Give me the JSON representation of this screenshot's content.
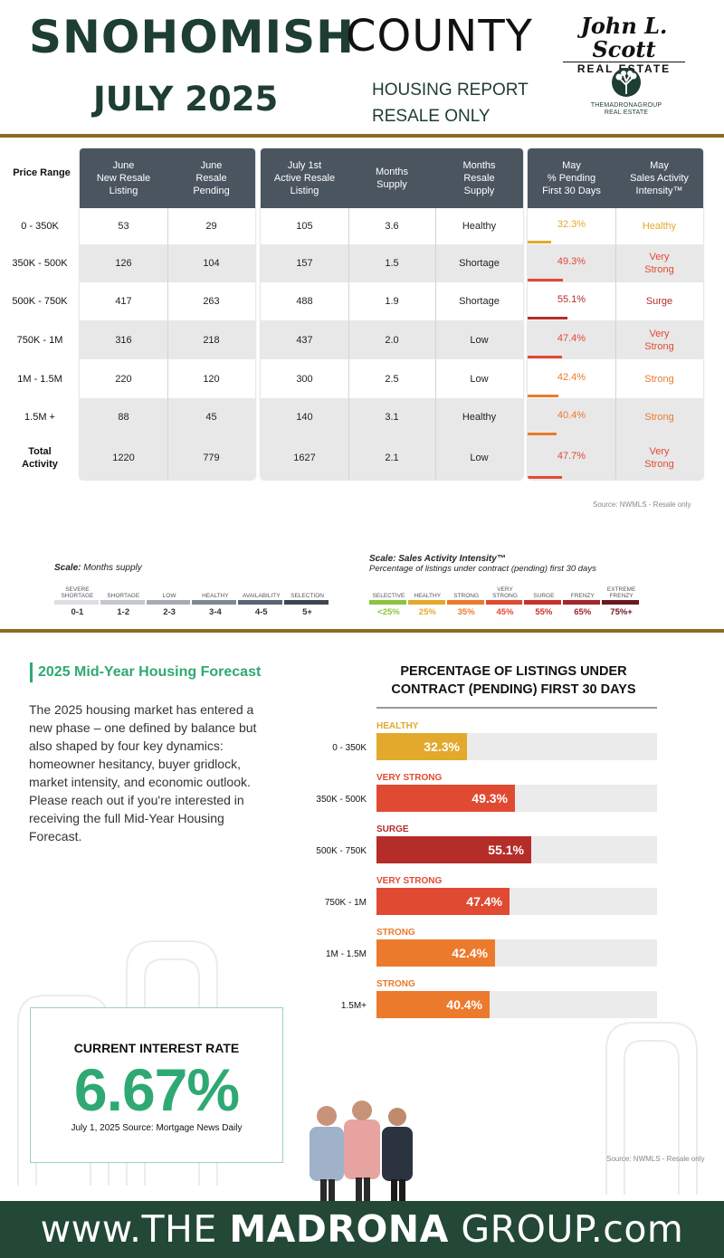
{
  "header": {
    "title_bold": "SNOHOMISH",
    "title_light": "COUNTY",
    "month": "JULY 2025",
    "subtitle_line1": "HOUSING REPORT",
    "subtitle_line2": "RESALE ONLY",
    "brand_name": "John L. Scott",
    "brand_sub": "REAL ESTATE",
    "group_logo_text": "THEMADRONAGROUP",
    "group_logo_sub": "REAL ESTATE"
  },
  "table": {
    "price_range_header": "Price Range",
    "headers": {
      "june_new": [
        "June",
        "New Resale",
        "Listing"
      ],
      "june_pending": [
        "June",
        "Resale",
        "Pending"
      ],
      "active": [
        "July 1st",
        "Active Resale",
        "Listing"
      ],
      "months_supply": [
        "Months",
        "Supply"
      ],
      "resale_supply": [
        "Months",
        "Resale",
        "Supply"
      ],
      "pct_pending": [
        "May",
        "% Pending",
        "First 30 Days"
      ],
      "intensity": [
        "May",
        "Sales Activity",
        "Intensity™"
      ]
    },
    "rows": [
      {
        "range": "0 - 350K",
        "new": "53",
        "pending": "29",
        "active": "105",
        "supply": "3.6",
        "status": "Healthy",
        "pct": "32.3%",
        "pct_value": 32.3,
        "intensity": "Healthy",
        "color": "#e3a92c"
      },
      {
        "range": "350K - 500K",
        "new": "126",
        "pending": "104",
        "active": "157",
        "supply": "1.5",
        "status": "Shortage",
        "pct": "49.3%",
        "pct_value": 49.3,
        "intensity": "Very Strong",
        "color": "#e04a33"
      },
      {
        "range": "500K - 750K",
        "new": "417",
        "pending": "263",
        "active": "488",
        "supply": "1.9",
        "status": "Shortage",
        "pct": "55.1%",
        "pct_value": 55.1,
        "intensity": "Surge",
        "color": "#b52d29"
      },
      {
        "range": "750K - 1M",
        "new": "316",
        "pending": "218",
        "active": "437",
        "supply": "2.0",
        "status": "Low",
        "pct": "47.4%",
        "pct_value": 47.4,
        "intensity": "Very Strong",
        "color": "#e04a33"
      },
      {
        "range": "1M - 1.5M",
        "new": "220",
        "pending": "120",
        "active": "300",
        "supply": "2.5",
        "status": "Low",
        "pct": "42.4%",
        "pct_value": 42.4,
        "intensity": "Strong",
        "color": "#ec7a2c"
      },
      {
        "range": "1.5M +",
        "new": "88",
        "pending": "45",
        "active": "140",
        "supply": "3.1",
        "status": "Healthy",
        "pct": "40.4%",
        "pct_value": 40.4,
        "intensity": "Strong",
        "color": "#ec7a2c"
      }
    ],
    "total": {
      "range": "Total Activity",
      "new": "1220",
      "pending": "779",
      "active": "1627",
      "supply": "2.1",
      "status": "Low",
      "pct": "47.7%",
      "pct_value": 47.7,
      "intensity": "Very Strong",
      "color": "#e04a33"
    },
    "source": "Source: NWMLS - Resale only"
  },
  "scale_months": {
    "title": "Scale:",
    "title_rest": "Months supply",
    "labels": [
      "SEVERE SHORTAGE",
      "SHORTAGE",
      "LOW",
      "HEALTHY",
      "AVAILABILITY",
      "SELECTION"
    ],
    "values": [
      "0-1",
      "1-2",
      "2-3",
      "3-4",
      "4-5",
      "5+"
    ],
    "colors": [
      "#dcdfe3",
      "#c3c8ce",
      "#a4abb3",
      "#7e8893",
      "#5a6572",
      "#3d4652"
    ]
  },
  "scale_intensity": {
    "title": "Scale: Sales Activity Intensity™",
    "subtitle": "Percentage of listings under contract (pending) first 30 days",
    "labels": [
      "SELECTIVE",
      "HEALTHY",
      "STRONG",
      "VERY STRONG",
      "SURGE",
      "FRENZY",
      "EXTREME FRENZY"
    ],
    "values": [
      "<25%",
      "25%",
      "35%",
      "45%",
      "55%",
      "65%",
      "75%+"
    ],
    "colors": [
      "#8cc43f",
      "#e3a92c",
      "#ec7a2c",
      "#e04a33",
      "#c9332b",
      "#a3262a",
      "#6b1a1f"
    ]
  },
  "forecast": {
    "title": "2025 Mid-Year Housing Forecast",
    "body": "The 2025 housing market has entered a new phase – one defined by balance but also shaped by four key dynamics: homeowner hesitancy, buyer gridlock, market intensity, and economic outlook. Please reach out if you're interested in receiving the full Mid-Year Housing Forecast."
  },
  "chart_data": {
    "type": "bar",
    "title": "PERCENTAGE OF LISTINGS UNDER CONTRACT (PENDING) FIRST 30 DAYS",
    "categories": [
      "0 - 350K",
      "350K - 500K",
      "500K - 750K",
      "750K - 1M",
      "1M - 1.5M",
      "1.5M+"
    ],
    "values": [
      32.3,
      49.3,
      55.1,
      47.4,
      42.4,
      40.4
    ],
    "value_labels": [
      "32.3%",
      "49.3%",
      "55.1%",
      "47.4%",
      "42.4%",
      "40.4%"
    ],
    "bar_labels": [
      "HEALTHY",
      "VERY STRONG",
      "SURGE",
      "VERY STRONG",
      "STRONG",
      "STRONG"
    ],
    "colors": [
      "#e3a92c",
      "#e04a33",
      "#b52d29",
      "#e04a33",
      "#ec7a2c",
      "#ec7a2c"
    ],
    "ylim": [
      0,
      100
    ],
    "orientation": "horizontal"
  },
  "interest": {
    "label": "CURRENT INTEREST RATE",
    "value": "6.67%",
    "source": "July 1, 2025 Source: Mortgage News Daily"
  },
  "source2": "Source: NWMLS - Resale only",
  "footer": {
    "prefix": "www.THE ",
    "bold": "MADRONA",
    "suffix": " GROUP.com"
  }
}
